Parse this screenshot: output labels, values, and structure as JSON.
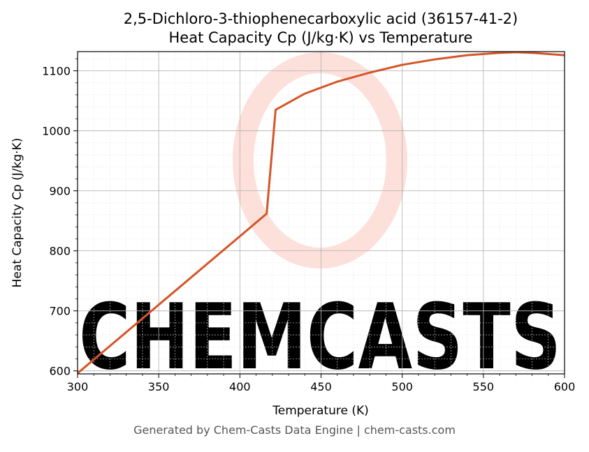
{
  "chart_data": {
    "type": "line",
    "title": "2,5-Dichloro-3-thiophenecarboxylic acid (36157-41-2)",
    "subtitle": "Heat Capacity Cp (J/kg·K) vs Temperature",
    "xlabel": "Temperature (K)",
    "ylabel": "Heat Capacity Cp (J/kg·K)",
    "xlim": [
      300,
      600
    ],
    "ylim": [
      595,
      1132
    ],
    "x_ticks": [
      300,
      350,
      400,
      450,
      500,
      550,
      600
    ],
    "y_ticks": [
      600,
      700,
      800,
      900,
      1000,
      1100
    ],
    "grid": true,
    "line_color": "#d55527",
    "series": [
      {
        "x": [
          300,
          416.5,
          422,
          440,
          460,
          480,
          500,
          520,
          540,
          560,
          570,
          580,
          600
        ],
        "values": [
          596,
          862,
          1035,
          1062,
          1082,
          1097,
          1110,
          1119,
          1126,
          1130,
          1131,
          1130,
          1126
        ]
      }
    ]
  },
  "watermark": {
    "text": "CHEMCASTS",
    "color": "#fde0da"
  },
  "footer": "Generated by Chem-Casts Data Engine | chem-casts.com"
}
